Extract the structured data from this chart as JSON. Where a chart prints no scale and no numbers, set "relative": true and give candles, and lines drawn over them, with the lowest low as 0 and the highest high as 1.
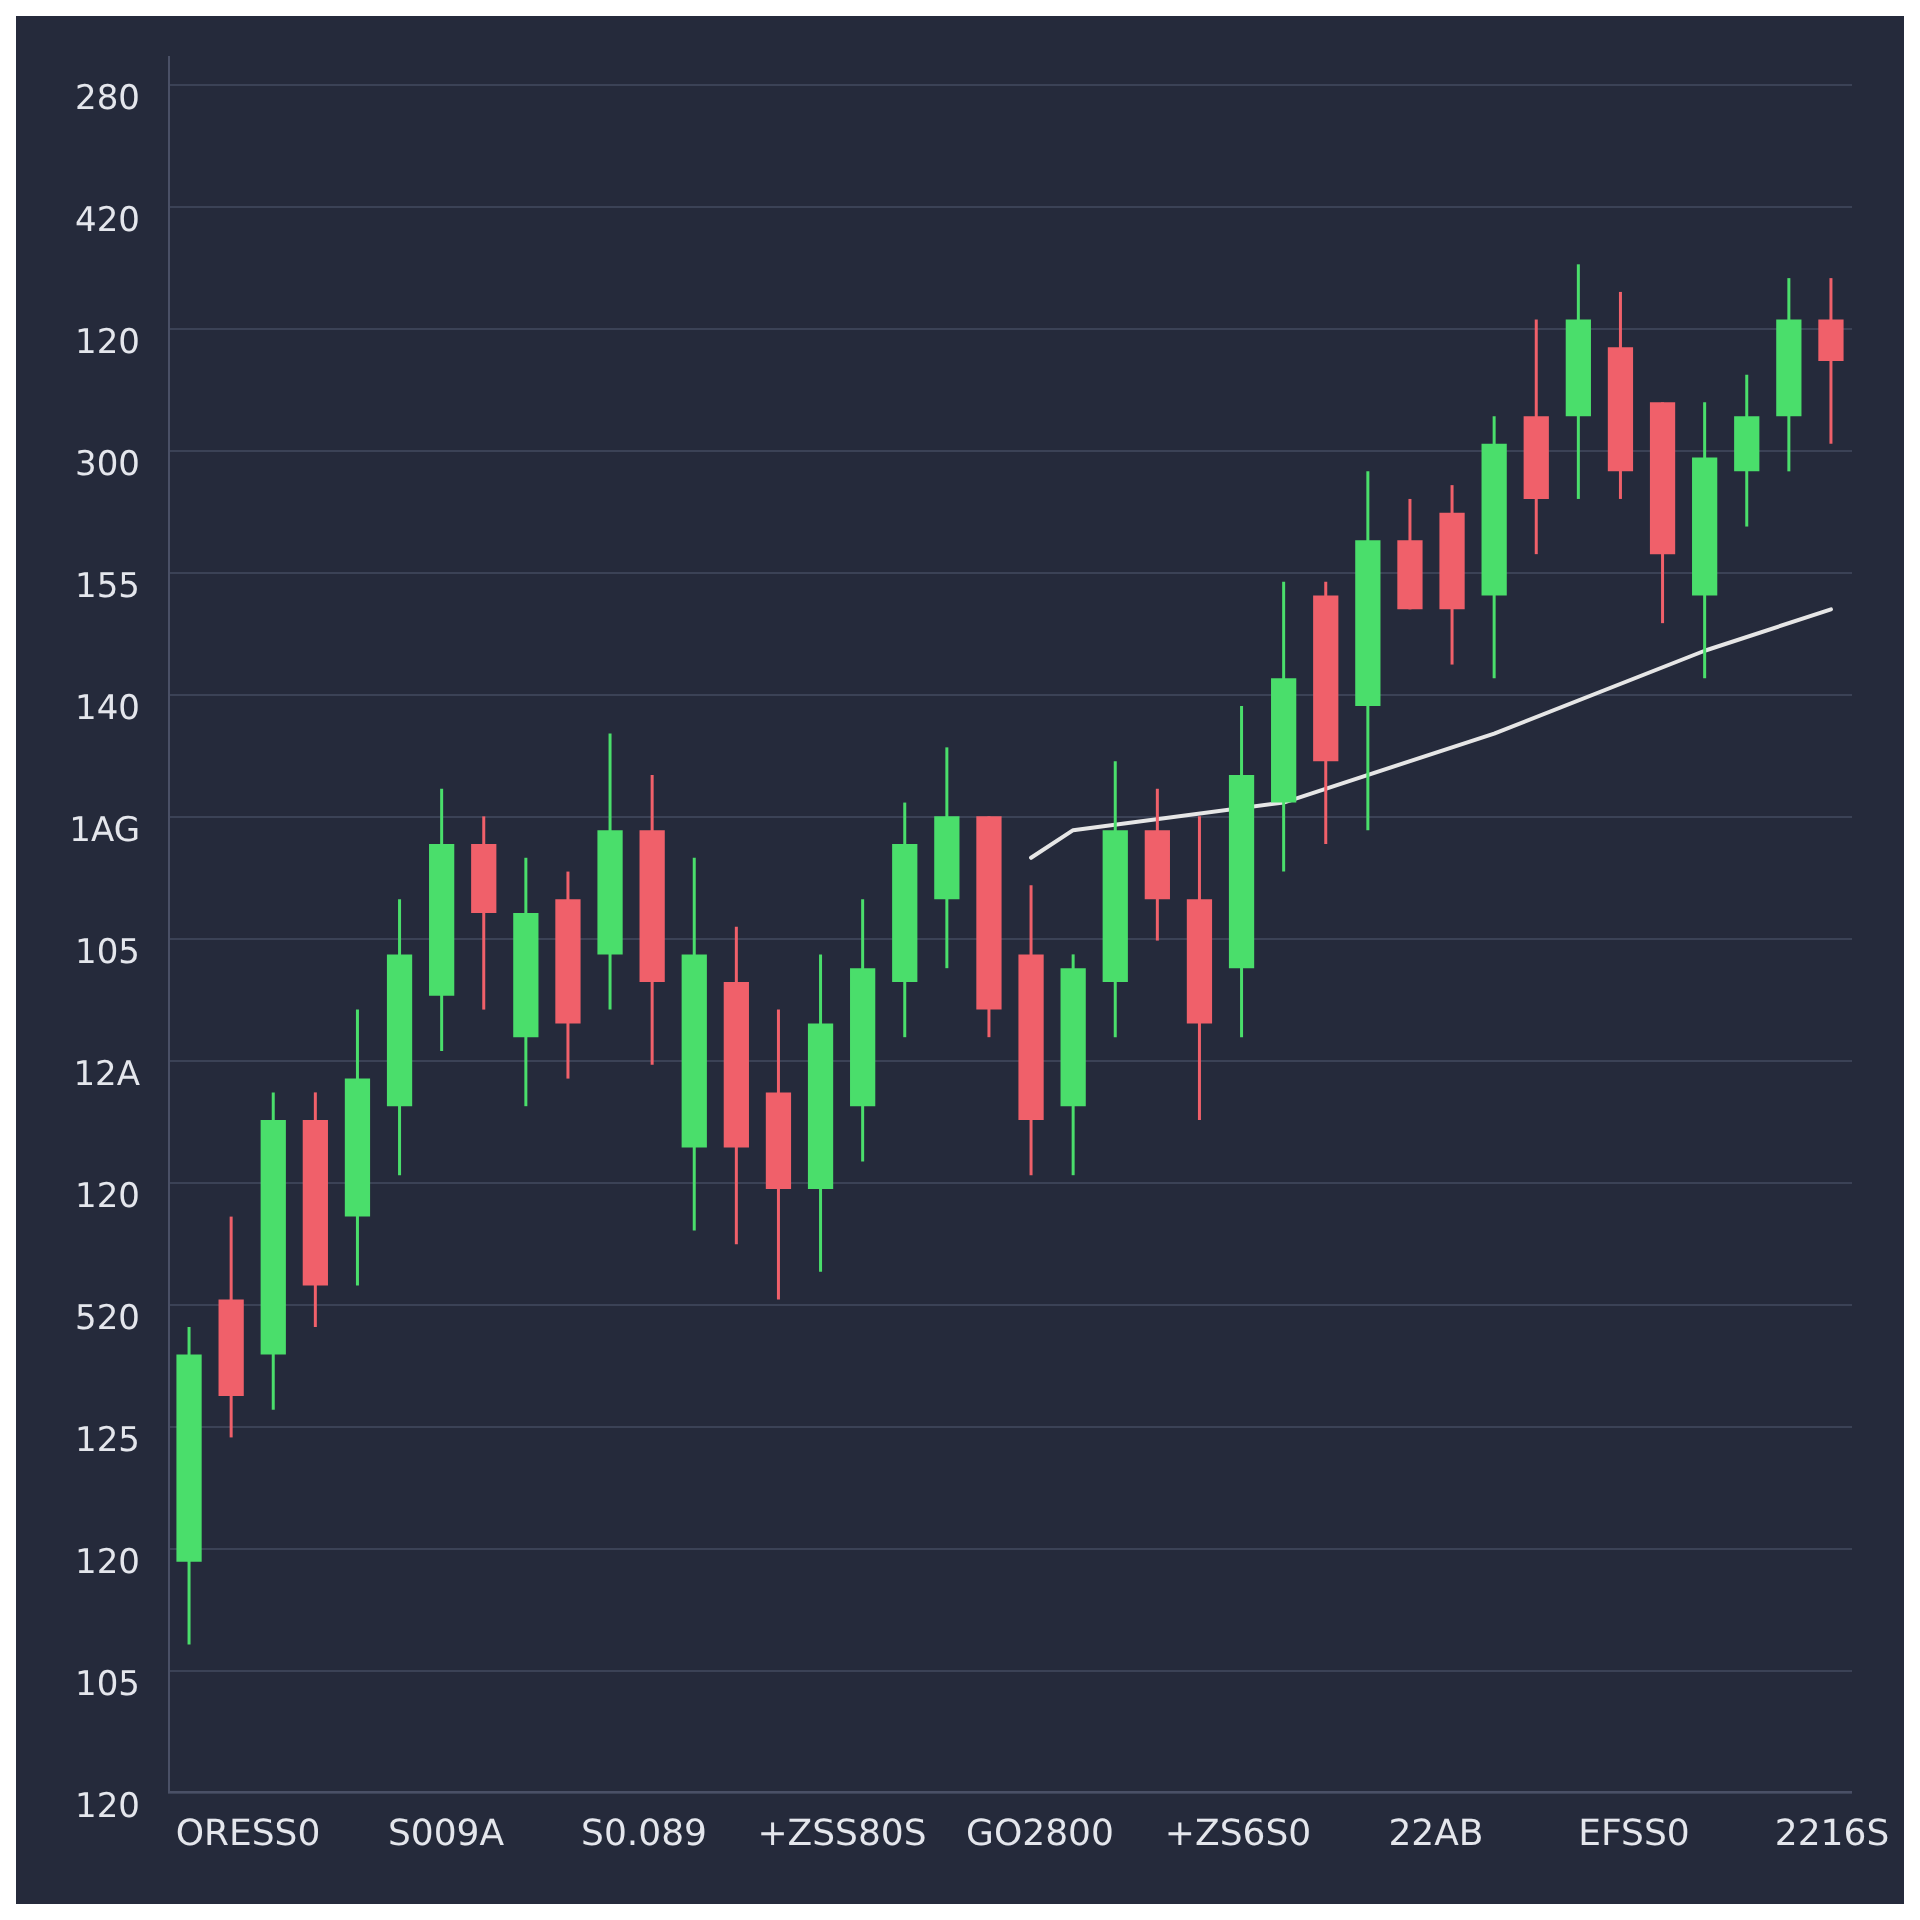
{
  "chart_data": {
    "type": "candlestick",
    "relative": true,
    "categories": [
      null,
      null,
      null,
      null,
      null,
      null,
      null,
      null,
      null,
      null,
      null,
      null,
      null,
      null,
      null,
      null,
      null,
      null,
      null,
      null,
      null,
      null,
      null,
      null,
      null,
      null,
      null,
      null,
      null,
      null,
      null,
      null,
      null,
      null,
      null,
      null,
      null,
      null,
      null,
      null
    ],
    "ohlc": [
      [
        0.06,
        0.23,
        0,
        0.21
      ],
      [
        0.25,
        0.31,
        0.15,
        0.18
      ],
      [
        0.21,
        0.4,
        0.17,
        0.38
      ],
      [
        0.38,
        0.4,
        0.23,
        0.26
      ],
      [
        0.31,
        0.46,
        0.26,
        0.41
      ],
      [
        0.39,
        0.54,
        0.34,
        0.5
      ],
      [
        0.47,
        0.62,
        0.43,
        0.58
      ],
      [
        0.58,
        0.6,
        0.46,
        0.53
      ],
      [
        0.44,
        0.57,
        0.39,
        0.53
      ],
      [
        0.54,
        0.56,
        0.41,
        0.45
      ],
      [
        0.5,
        0.66,
        0.46,
        0.59
      ],
      [
        0.59,
        0.63,
        0.42,
        0.48
      ],
      [
        0.36,
        0.57,
        0.3,
        0.5
      ],
      [
        0.48,
        0.52,
        0.29,
        0.36
      ],
      [
        0.4,
        0.46,
        0.25,
        0.33
      ],
      [
        0.33,
        0.5,
        0.27,
        0.45
      ],
      [
        0.39,
        0.54,
        0.35,
        0.49
      ],
      [
        0.48,
        0.61,
        0.44,
        0.58
      ],
      [
        0.54,
        0.65,
        0.49,
        0.6
      ],
      [
        0.6,
        0.6,
        0.44,
        0.46
      ],
      [
        0.5,
        0.55,
        0.34,
        0.38
      ],
      [
        0.39,
        0.5,
        0.34,
        0.49
      ],
      [
        0.48,
        0.64,
        0.44,
        0.59
      ],
      [
        0.59,
        0.62,
        0.51,
        0.54
      ],
      [
        0.54,
        0.6,
        0.38,
        0.45
      ],
      [
        0.49,
        0.68,
        0.44,
        0.63
      ],
      [
        0.61,
        0.77,
        0.56,
        0.7
      ],
      [
        0.76,
        0.77,
        0.58,
        0.64
      ],
      [
        0.68,
        0.85,
        0.59,
        0.8
      ],
      [
        0.8,
        0.83,
        0.75,
        0.75
      ],
      [
        0.82,
        0.84,
        0.71,
        0.75
      ],
      [
        0.76,
        0.89,
        0.7,
        0.87
      ],
      [
        0.89,
        0.96,
        0.79,
        0.83
      ],
      [
        0.89,
        1,
        0.83,
        0.96
      ],
      [
        0.94,
        0.98,
        0.83,
        0.85
      ],
      [
        0.9,
        0.9,
        0.74,
        0.79
      ],
      [
        0.76,
        0.9,
        0.7,
        0.86
      ],
      [
        0.85,
        0.92,
        0.81,
        0.89
      ],
      [
        0.89,
        0.99,
        0.85,
        0.96
      ],
      [
        0.96,
        0.99,
        0.87,
        0.93
      ]
    ],
    "colors": [
      "#4ade6b",
      "#f0606a",
      "#4ade6b",
      "#f0606a",
      "#4ade6b",
      "#4ade6b",
      "#4ade6b",
      "#f0606a",
      "#4ade6b",
      "#f0606a",
      "#4ade6b",
      "#f0606a",
      "#4ade6b",
      "#f0606a",
      "#f0606a",
      "#4ade6b",
      "#4ade6b",
      "#4ade6b",
      "#4ade6b",
      "#f0606a",
      "#f0606a",
      "#4ade6b",
      "#4ade6b",
      "#f0606a",
      "#f0606a",
      "#4ade6b",
      "#4ade6b",
      "#f0606a",
      "#4ade6b",
      "#f0606a",
      "#f0606a",
      "#4ade6b",
      "#f0606a",
      "#4ade6b",
      "#f0606a",
      "#f0606a",
      "#4ade6b",
      "#4ade6b",
      "#4ade6b",
      "#f0606a"
    ],
    "series": [
      {
        "type": "line",
        "color": "#e6e6e6",
        "values": [
          null,
          null,
          null,
          null,
          null,
          null,
          null,
          null,
          null,
          null,
          null,
          null,
          null,
          null,
          null,
          null,
          null,
          null,
          null,
          null,
          0.57,
          0.59,
          null,
          null,
          null,
          null,
          0.61,
          null,
          null,
          null,
          null,
          0.66,
          null,
          null,
          null,
          null,
          0.72,
          null,
          null,
          0.75
        ]
      }
    ],
    "annotations": [
      "280",
      "420",
      "120",
      "300",
      "155",
      "140",
      "1AG",
      "105",
      "12A",
      "120",
      "520",
      "125",
      "120",
      "105",
      "120",
      "ORESS0",
      "S009A",
      "S0.089",
      "+ZSS80S",
      "GO2800",
      "+ZS6S0",
      "22AB",
      "EFSS0",
      "2216S"
    ],
    "grid": "y",
    "legend": false
  }
}
